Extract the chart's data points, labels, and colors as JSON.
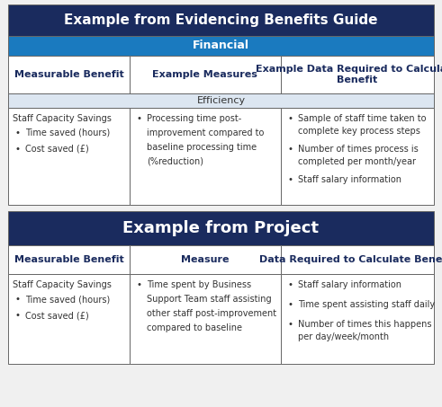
{
  "title1": "Example from Evidencing Benefits Guide",
  "title1_bg": "#1a2b5e",
  "title1_fg": "#ffffff",
  "title2": "Example from Project",
  "title2_bg": "#1a2b5e",
  "title2_fg": "#ffffff",
  "financial_label": "Financial",
  "financial_bg": "#1a7abf",
  "financial_fg": "#ffffff",
  "efficiency_label": "Efficiency",
  "efficiency_bg": "#dce6f1",
  "efficiency_fg": "#333333",
  "header1_col1": "Measurable Benefit",
  "header1_col2": "Example Measures",
  "header1_col3": "Example Data Required to Calculate\nBenefit",
  "header2_col1": "Measurable Benefit",
  "header2_col2": "Measure",
  "header2_col3": "Data Required to Calculate Benefit",
  "section1_col1_title": "Staff Capacity Savings",
  "section1_col1_bullets": [
    "Time saved (hours)",
    "Cost saved (£)"
  ],
  "section1_col2_bullet": "Processing time post-\nimprovement compared to\nbaseline processing time\n(%reduction)",
  "section1_col3_bullets": [
    "Sample of staff time taken to\ncomplete key process steps",
    "Number of times process is\ncompleted per month/year",
    "Staff salary information"
  ],
  "section2_col1_title": "Staff Capacity Savings",
  "section2_col1_bullets": [
    "Time saved (hours)",
    "Cost saved (£)"
  ],
  "section2_col2_bullet": "Time spent by Business\nSupport Team staff assisting\nother staff post-improvement\ncompared to baseline",
  "section2_col3_bullets": [
    "Staff salary information",
    "Time spent assisting staff daily",
    "Number of times this happens\nper day/week/month"
  ],
  "border_color": "#666666",
  "text_color": "#333333",
  "header_text_color": "#1a2b5e",
  "bg_white": "#ffffff",
  "bg_outer": "#f0f0f0"
}
